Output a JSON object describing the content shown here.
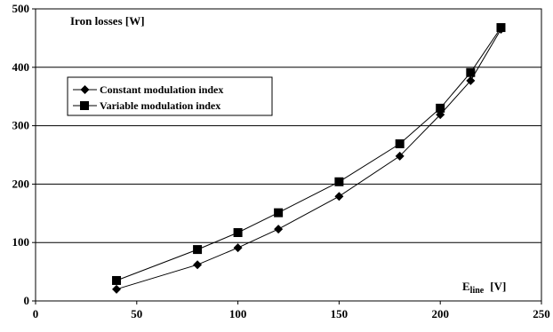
{
  "chart_data": {
    "type": "line",
    "ylabel": "Iron losses [W]",
    "xlabel_main": "E",
    "xlabel_sub": "line",
    "xlabel_unit": "[V]",
    "xlim": [
      0,
      250
    ],
    "ylim": [
      0,
      500
    ],
    "xticks": [
      0,
      50,
      100,
      150,
      200,
      250
    ],
    "yticks": [
      0,
      100,
      200,
      300,
      400,
      500
    ],
    "grid": "horizontal",
    "legend_position": "upper-left",
    "series": [
      {
        "name": "Constant modulation index",
        "marker": "diamond",
        "color": "#000000",
        "x": [
          40,
          80,
          100,
          120,
          150,
          180,
          200,
          215,
          230
        ],
        "y": [
          20,
          62,
          91,
          123,
          179,
          248,
          319,
          377,
          465
        ]
      },
      {
        "name": "Variable modulation index",
        "marker": "square",
        "color": "#000000",
        "x": [
          40,
          80,
          100,
          120,
          150,
          180,
          200,
          215,
          230
        ],
        "y": [
          35,
          88,
          117,
          151,
          204,
          269,
          330,
          391,
          468
        ]
      }
    ]
  }
}
